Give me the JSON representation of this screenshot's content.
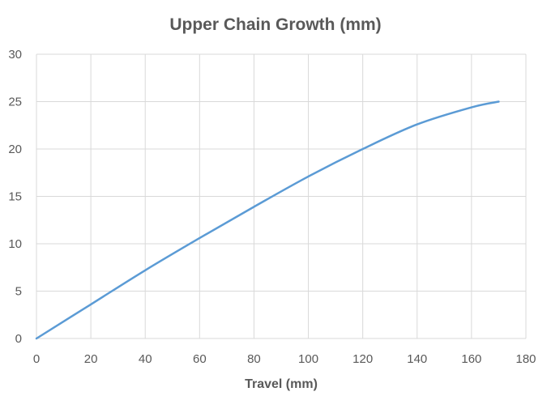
{
  "chart_data": {
    "type": "line",
    "title": "Upper Chain Growth (mm)",
    "xlabel": "Travel (mm)",
    "ylabel": "",
    "xlim": [
      0,
      180
    ],
    "ylim": [
      0,
      30
    ],
    "xticks": [
      0,
      20,
      40,
      60,
      80,
      100,
      120,
      140,
      160,
      180
    ],
    "yticks": [
      0,
      5,
      10,
      15,
      20,
      25,
      30
    ],
    "grid": true,
    "legend": "none",
    "series": [
      {
        "name": "Upper Chain Growth",
        "color": "#5B9BD5",
        "x": [
          0,
          20,
          40,
          60,
          80,
          100,
          120,
          140,
          160,
          170
        ],
        "y": [
          0,
          3.6,
          7.2,
          10.6,
          13.9,
          17.1,
          20.0,
          22.6,
          24.4,
          25.0
        ]
      }
    ]
  }
}
